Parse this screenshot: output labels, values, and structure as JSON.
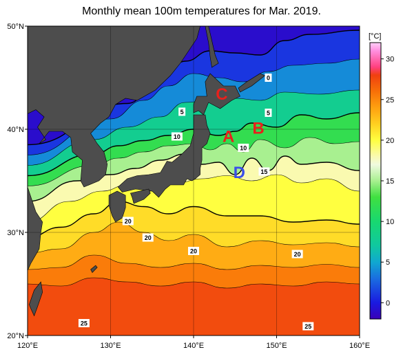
{
  "title": "Monthly mean 100m temperatures for Mar. 2019.",
  "map": {
    "lon_range": [
      120,
      160
    ],
    "lat_range": [
      20,
      50
    ],
    "x_ticks": [
      {
        "value": 120,
        "label": "120°E"
      },
      {
        "value": 130,
        "label": "130°E"
      },
      {
        "value": 140,
        "label": "140°E"
      },
      {
        "value": 150,
        "label": "150°E"
      },
      {
        "value": 160,
        "label": "160°E"
      }
    ],
    "y_ticks": [
      {
        "value": 20,
        "label": "20°N"
      },
      {
        "value": 30,
        "label": "30°N"
      },
      {
        "value": 40,
        "label": "40°N"
      },
      {
        "value": 50,
        "label": "50°N"
      }
    ],
    "grid": true,
    "colors": {
      "land": "#4d4d4d",
      "land_outside": "#d2d2d2",
      "missing": "#ffffff",
      "ocean_bg": "#ffffff"
    }
  },
  "colorbar": {
    "unit": "[°C]",
    "range": [
      -2,
      32
    ],
    "ticks": [
      0,
      5,
      10,
      15,
      20,
      25,
      30
    ],
    "stops": [
      {
        "t": -2,
        "color": "#3a00b8"
      },
      {
        "t": 0,
        "color": "#1a1ae0"
      },
      {
        "t": 3,
        "color": "#1a6ee0"
      },
      {
        "t": 5,
        "color": "#10a8d0"
      },
      {
        "t": 7,
        "color": "#10c8a0"
      },
      {
        "t": 10,
        "color": "#18d870"
      },
      {
        "t": 13,
        "color": "#40e040"
      },
      {
        "t": 15,
        "color": "#a8f090"
      },
      {
        "t": 17,
        "color": "#f0fae0"
      },
      {
        "t": 18,
        "color": "#fafab0"
      },
      {
        "t": 20,
        "color": "#ffff40"
      },
      {
        "t": 22,
        "color": "#ffd020"
      },
      {
        "t": 24,
        "color": "#ffa010"
      },
      {
        "t": 26,
        "color": "#f87008"
      },
      {
        "t": 28,
        "color": "#f04010"
      },
      {
        "t": 29,
        "color": "#ff4080"
      },
      {
        "t": 31,
        "color": "#ff90e0"
      },
      {
        "t": 32,
        "color": "#ffd0f8"
      }
    ]
  },
  "temperature_bands": [
    {
      "id": "t-25",
      "temp": 25.5,
      "boundary": [
        [
          120,
          25.0
        ],
        [
          124,
          24.8
        ],
        [
          128,
          25.6
        ],
        [
          132,
          25.2
        ],
        [
          136,
          24.8
        ],
        [
          140,
          25.2
        ],
        [
          144,
          24.6
        ],
        [
          148,
          25.0
        ],
        [
          152,
          24.8
        ],
        [
          156,
          25.2
        ],
        [
          160,
          25.0
        ]
      ]
    },
    {
      "id": "t-23",
      "temp": 23.5,
      "boundary": [
        [
          120,
          26.4
        ],
        [
          124,
          26.6
        ],
        [
          128,
          27.8
        ],
        [
          132,
          27.0
        ],
        [
          136,
          26.6
        ],
        [
          140,
          27.0
        ],
        [
          144,
          26.4
        ],
        [
          148,
          26.8
        ],
        [
          152,
          26.6
        ],
        [
          156,
          26.9
        ],
        [
          160,
          26.6
        ]
      ]
    },
    {
      "id": "t-21",
      "temp": 21.5,
      "boundary": [
        [
          120,
          28.0
        ],
        [
          124,
          28.4
        ],
        [
          128,
          30.0
        ],
        [
          131,
          31.0
        ],
        [
          134,
          30.0
        ],
        [
          137,
          29.2
        ],
        [
          140,
          29.8
        ],
        [
          144,
          28.6
        ],
        [
          148,
          29.2
        ],
        [
          152,
          28.8
        ],
        [
          156,
          29.0
        ],
        [
          160,
          28.6
        ]
      ]
    },
    {
      "id": "t-20",
      "temp": 20.0,
      "boundary": [
        [
          120,
          29.5
        ],
        [
          124,
          30.5
        ],
        [
          128,
          31.8
        ],
        [
          131,
          33.0
        ],
        [
          134,
          32.5
        ],
        [
          137,
          31.8
        ],
        [
          140,
          32.5
        ],
        [
          144,
          31.6
        ],
        [
          148,
          31.6
        ],
        [
          152,
          31.0
        ],
        [
          156,
          31.2
        ],
        [
          160,
          30.8
        ]
      ]
    },
    {
      "id": "t-18",
      "temp": 18.0,
      "boundary": [
        [
          120,
          31.0
        ],
        [
          125,
          33.0
        ],
        [
          129,
          34.0
        ],
        [
          132,
          34.6
        ],
        [
          135,
          34.0
        ],
        [
          138,
          34.8
        ],
        [
          141,
          35.2
        ],
        [
          144,
          35.5
        ],
        [
          147,
          35.0
        ],
        [
          150,
          35.6
        ],
        [
          153,
          34.8
        ],
        [
          156,
          35.2
        ],
        [
          160,
          34.0
        ]
      ]
    },
    {
      "id": "t-15",
      "temp": 15.0,
      "boundary": [
        [
          120,
          33.0
        ],
        [
          126,
          35.0
        ],
        [
          130,
          35.6
        ],
        [
          133,
          36.2
        ],
        [
          136,
          37.0
        ],
        [
          139,
          37.6
        ],
        [
          141,
          36.6
        ],
        [
          143,
          36.8
        ],
        [
          145,
          35.6
        ],
        [
          147,
          37.2
        ],
        [
          149,
          36.0
        ],
        [
          151,
          37.4
        ],
        [
          153,
          36.6
        ],
        [
          156,
          36.8
        ],
        [
          160,
          36.0
        ]
      ]
    },
    {
      "id": "t-12",
      "temp": 12.0,
      "boundary": [
        [
          120,
          34.5
        ],
        [
          128,
          36.5
        ],
        [
          131,
          37.2
        ],
        [
          134,
          37.8
        ],
        [
          137,
          38.4
        ],
        [
          140,
          38.6
        ],
        [
          142,
          38.0
        ],
        [
          144,
          38.6
        ],
        [
          146,
          37.8
        ],
        [
          148,
          39.0
        ],
        [
          151,
          38.2
        ],
        [
          154,
          39.2
        ],
        [
          157,
          38.6
        ],
        [
          160,
          38.8
        ]
      ]
    },
    {
      "id": "t-08",
      "temp": 8.0,
      "boundary": [
        [
          120,
          35.5
        ],
        [
          128,
          37.6
        ],
        [
          131,
          38.4
        ],
        [
          134,
          38.9
        ],
        [
          137,
          39.4
        ],
        [
          140,
          40.0
        ],
        [
          143,
          39.4
        ],
        [
          145,
          39.8
        ],
        [
          147,
          40.6
        ],
        [
          150,
          40.2
        ],
        [
          153,
          41.4
        ],
        [
          156,
          41.0
        ],
        [
          160,
          41.6
        ]
      ]
    },
    {
      "id": "t-04",
      "temp": 4.0,
      "boundary": [
        [
          120,
          36.5
        ],
        [
          128,
          39.0
        ],
        [
          132,
          40.2
        ],
        [
          136,
          41.2
        ],
        [
          139,
          42.6
        ],
        [
          142,
          42.8
        ],
        [
          145,
          43.0
        ],
        [
          148,
          42.8
        ],
        [
          151,
          43.6
        ],
        [
          155,
          43.4
        ],
        [
          160,
          43.8
        ]
      ]
    },
    {
      "id": "t-01",
      "temp": 1.0,
      "boundary": [
        [
          120,
          37.5
        ],
        [
          130,
          41.0
        ],
        [
          134,
          42.8
        ],
        [
          137,
          44.2
        ],
        [
          140,
          45.4
        ],
        [
          143,
          45.0
        ],
        [
          146,
          44.6
        ],
        [
          149,
          45.6
        ],
        [
          152,
          46.2
        ],
        [
          156,
          46.4
        ],
        [
          160,
          46.8
        ]
      ]
    },
    {
      "id": "t-n1",
      "temp": -1.0,
      "boundary": [
        [
          120,
          38.5
        ],
        [
          132,
          42.5
        ],
        [
          136,
          44.8
        ],
        [
          139,
          46.6
        ],
        [
          142,
          47.6
        ],
        [
          145,
          47.4
        ],
        [
          148,
          47.2
        ],
        [
          151,
          48.6
        ],
        [
          154,
          49.2
        ],
        [
          160,
          49.6
        ]
      ]
    }
  ],
  "land_polygons": [
    {
      "id": "asia-mainland",
      "points": [
        [
          120,
          41.5
        ],
        [
          121,
          41.9
        ],
        [
          122,
          41.2
        ],
        [
          121.2,
          40.2
        ],
        [
          122.2,
          39.0
        ],
        [
          121.4,
          38.6
        ],
        [
          122.6,
          39.8
        ],
        [
          124.2,
          39.8
        ],
        [
          125.2,
          39.2
        ],
        [
          125.4,
          37.8
        ],
        [
          126.6,
          37.0
        ],
        [
          126.4,
          35.0
        ],
        [
          126.8,
          34.4
        ],
        [
          128.6,
          35.0
        ],
        [
          129.4,
          35.6
        ],
        [
          129.6,
          36.6
        ],
        [
          129.2,
          37.8
        ],
        [
          128.4,
          38.6
        ],
        [
          127.6,
          39.6
        ],
        [
          128.8,
          40.6
        ],
        [
          129.8,
          41.2
        ],
        [
          130.6,
          42.4
        ],
        [
          131.8,
          43.0
        ],
        [
          133.2,
          42.8
        ],
        [
          135.4,
          43.8
        ],
        [
          137.2,
          45.2
        ],
        [
          138.4,
          46.4
        ],
        [
          139.4,
          47.6
        ],
        [
          140.4,
          48.8
        ],
        [
          140.8,
          50
        ],
        [
          120,
          50
        ]
      ]
    },
    {
      "id": "china-coast",
      "points": [
        [
          120,
          34.4
        ],
        [
          121,
          32.0
        ],
        [
          121.8,
          31.0
        ],
        [
          121.6,
          30.0
        ],
        [
          121.4,
          28.4
        ],
        [
          120.4,
          27.0
        ],
        [
          119.6,
          25.6
        ],
        [
          120,
          25
        ]
      ]
    },
    {
      "id": "sakhalin",
      "points": [
        [
          141.8,
          50
        ],
        [
          142.2,
          48.6
        ],
        [
          142.6,
          47.2
        ],
        [
          143.0,
          46.4
        ],
        [
          142.2,
          46.0
        ],
        [
          142.0,
          47.0
        ],
        [
          141.8,
          48.4
        ],
        [
          141.4,
          50
        ]
      ]
    },
    {
      "id": "hokkaido",
      "points": [
        [
          140.0,
          41.6
        ],
        [
          140.6,
          41.8
        ],
        [
          141.2,
          41.4
        ],
        [
          141.8,
          42.6
        ],
        [
          143.2,
          42.0
        ],
        [
          144.6,
          42.8
        ],
        [
          145.6,
          43.2
        ],
        [
          145.0,
          44.2
        ],
        [
          143.6,
          44.2
        ],
        [
          142.0,
          45.4
        ],
        [
          141.4,
          44.6
        ],
        [
          141.6,
          43.2
        ],
        [
          140.4,
          43.2
        ],
        [
          140.0,
          42.4
        ]
      ]
    },
    {
      "id": "honshu",
      "points": [
        [
          140.0,
          41.4
        ],
        [
          141.4,
          41.4
        ],
        [
          141.6,
          40.4
        ],
        [
          142.0,
          39.6
        ],
        [
          141.6,
          38.6
        ],
        [
          141.0,
          38.2
        ],
        [
          141.0,
          37.0
        ],
        [
          140.8,
          36.2
        ],
        [
          140.8,
          35.6
        ],
        [
          140.2,
          35.2
        ],
        [
          139.8,
          35.0
        ],
        [
          139.2,
          35.2
        ],
        [
          138.8,
          34.6
        ],
        [
          137.2,
          34.6
        ],
        [
          136.6,
          34.2
        ],
        [
          135.8,
          33.4
        ],
        [
          135.0,
          34.0
        ],
        [
          133.0,
          34.2
        ],
        [
          131.4,
          33.9
        ],
        [
          130.9,
          34.4
        ],
        [
          132.0,
          35.2
        ],
        [
          133.2,
          35.5
        ],
        [
          134.6,
          35.6
        ],
        [
          136.0,
          35.8
        ],
        [
          136.8,
          36.9
        ],
        [
          137.4,
          36.8
        ],
        [
          138.6,
          37.6
        ],
        [
          139.6,
          38.4
        ],
        [
          140.0,
          39.6
        ],
        [
          140.0,
          40.6
        ]
      ]
    },
    {
      "id": "kyushu",
      "points": [
        [
          129.8,
          33.6
        ],
        [
          130.8,
          34.0
        ],
        [
          131.8,
          33.6
        ],
        [
          131.8,
          32.4
        ],
        [
          131.4,
          31.4
        ],
        [
          130.6,
          31.0
        ],
        [
          130.2,
          31.6
        ],
        [
          129.8,
          32.6
        ]
      ]
    },
    {
      "id": "shikoku",
      "points": [
        [
          132.4,
          33.8
        ],
        [
          134.6,
          34.2
        ],
        [
          134.8,
          33.8
        ],
        [
          134.0,
          33.2
        ],
        [
          132.8,
          32.8
        ],
        [
          132.6,
          33.4
        ]
      ]
    },
    {
      "id": "taiwan",
      "points": [
        [
          120.2,
          23.0
        ],
        [
          120.8,
          24.4
        ],
        [
          121.6,
          25.2
        ],
        [
          121.8,
          24.2
        ],
        [
          121.2,
          22.8
        ],
        [
          120.8,
          21.9
        ],
        [
          120.4,
          22.6
        ]
      ]
    },
    {
      "id": "kuril-1",
      "points": [
        [
          145.6,
          43.6
        ],
        [
          147.0,
          44.2
        ],
        [
          148.6,
          45.2
        ],
        [
          148.0,
          45.4
        ],
        [
          146.4,
          44.6
        ],
        [
          145.4,
          44.0
        ]
      ]
    },
    {
      "id": "ryukyu",
      "points": [
        [
          127.6,
          26.4
        ],
        [
          128.2,
          26.8
        ],
        [
          128.4,
          26.6
        ],
        [
          127.8,
          26.1
        ]
      ]
    }
  ],
  "isotherm_labels": [
    {
      "text": "0",
      "lon": 149.0,
      "lat": 45.0
    },
    {
      "text": "5",
      "lon": 138.6,
      "lat": 41.7
    },
    {
      "text": "5",
      "lon": 149.0,
      "lat": 41.6
    },
    {
      "text": "10",
      "lon": 138.0,
      "lat": 39.3
    },
    {
      "text": "10",
      "lon": 146.0,
      "lat": 38.2
    },
    {
      "text": "15",
      "lon": 148.5,
      "lat": 35.9
    },
    {
      "text": "20",
      "lon": 132.1,
      "lat": 31.1
    },
    {
      "text": "20",
      "lon": 134.5,
      "lat": 29.5
    },
    {
      "text": "20",
      "lon": 140.0,
      "lat": 28.2
    },
    {
      "text": "20",
      "lon": 152.5,
      "lat": 27.9
    },
    {
      "text": "25",
      "lon": 126.8,
      "lat": 21.2
    },
    {
      "text": "25",
      "lon": 153.8,
      "lat": 20.9
    }
  ],
  "region_labels": [
    {
      "text": "A",
      "lon": 144.2,
      "lat": 39.3,
      "color": "#e8201c"
    },
    {
      "text": "B",
      "lon": 147.8,
      "lat": 40.1,
      "color": "#e8201c"
    },
    {
      "text": "C",
      "lon": 143.4,
      "lat": 43.4,
      "color": "#e8201c"
    },
    {
      "text": "D",
      "lon": 145.5,
      "lat": 35.8,
      "color": "#3a4ee8"
    }
  ]
}
